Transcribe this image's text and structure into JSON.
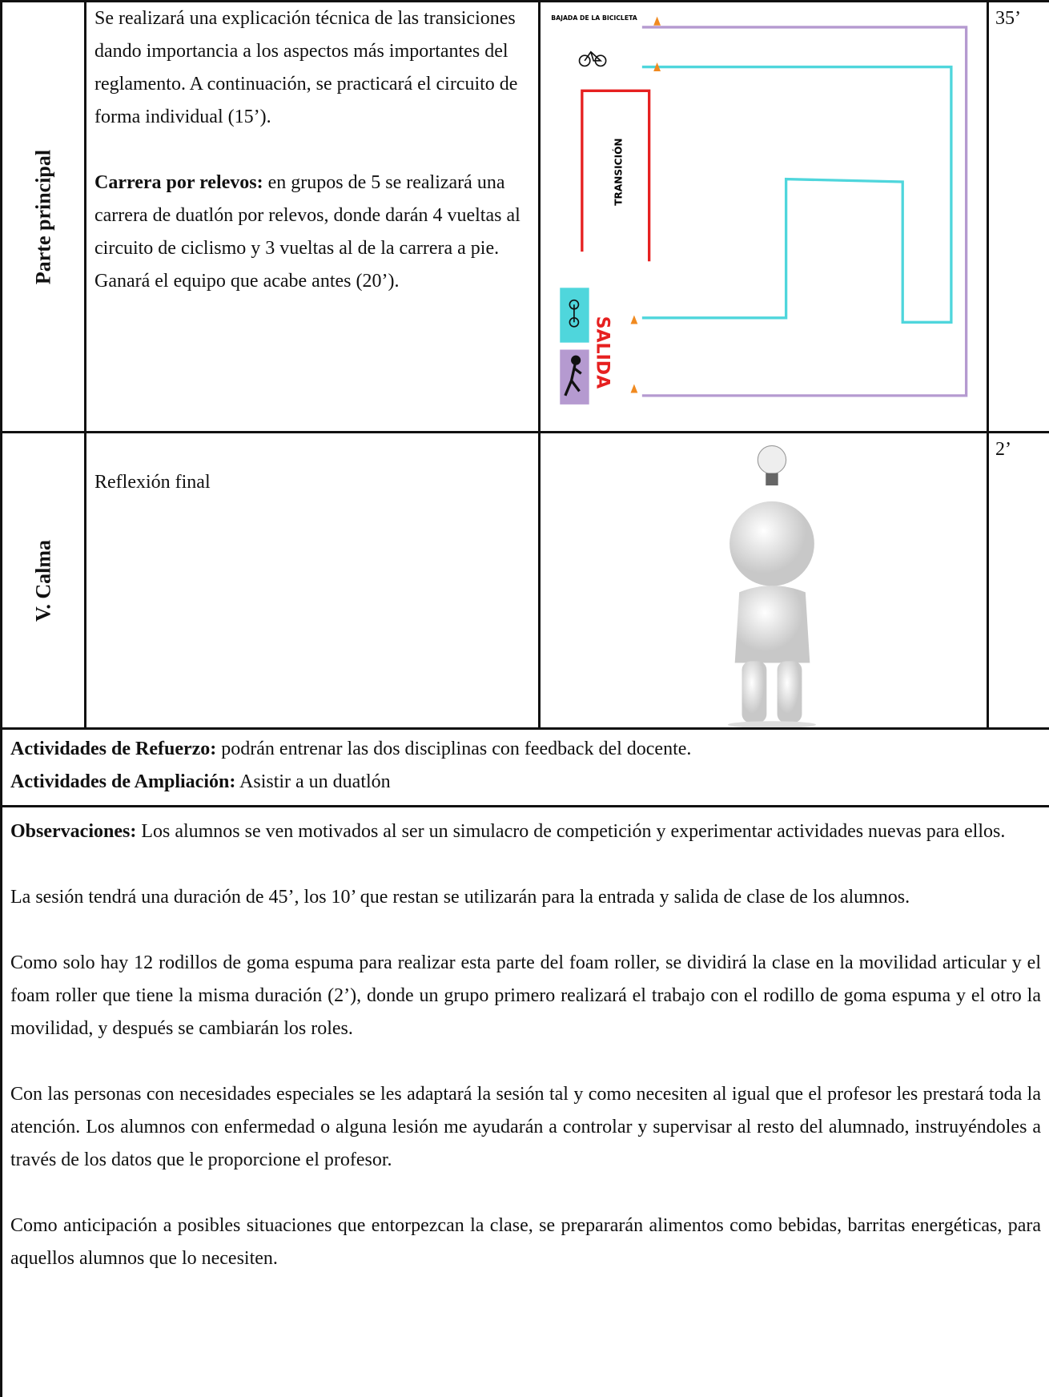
{
  "rows": [
    {
      "label": "Parte principal",
      "text1": "Se realizará una explicación técnica de las transiciones dando importancia a los aspectos más importantes del reglamento. A continuación, se practicará el circuito de forma individual (15’).",
      "lead": "Carrera por relevos:",
      "text2": " en grupos de 5 se realizará una carrera de duatlón por relevos, donde darán 4 vueltas al circuito de ciclismo y 3 vueltas al de la carrera a pie. Ganará el equipo que acabe antes (20’).",
      "time": "35’"
    },
    {
      "label": "V. Calma",
      "text1": "Reflexión final",
      "time": "2’"
    }
  ],
  "diagram": {
    "bajada": "BAJADA DE LA BICICLETA",
    "transicion": "TRANSICIÓN",
    "salida": "SALIDA"
  },
  "refuerzo": {
    "lead": "Actividades de Refuerzo:",
    "text": " podrán entrenar las dos disciplinas con feedback del docente."
  },
  "ampliacion": {
    "lead": "Actividades de Ampliación:",
    "text": " Asistir a un duatlón"
  },
  "observaciones": {
    "lead": "Observaciones:",
    "text": " Los alumnos se ven motivados al ser un simulacro de competición y experimentar actividades nuevas para ellos.",
    "paragraphs": [
      "La sesión tendrá una duración de 45’, los 10’ que restan se utilizarán para la entrada y salida de clase de los alumnos.",
      "Como solo hay 12 rodillos de goma espuma para realizar esta parte del foam roller, se dividirá la clase en la movilidad articular y el foam roller que tiene la misma duración (2’), donde un grupo primero realizará el trabajo con el rodillo de goma espuma y el otro la movilidad, y después se cambiarán los roles.",
      "Con las personas con necesidades especiales se les adaptará la sesión tal y como necesiten al igual que el profesor les prestará toda la atención. Los alumnos con enfermedad o alguna lesión me ayudarán a controlar y supervisar al resto del alumnado, instruyéndoles a través de los datos que le proporcione el profesor.",
      "Como anticipación a posibles situaciones que entorpezcan la clase, se prepararán alimentos como bebidas, barritas energéticas, para aquellos alumnos que lo necesiten."
    ]
  }
}
